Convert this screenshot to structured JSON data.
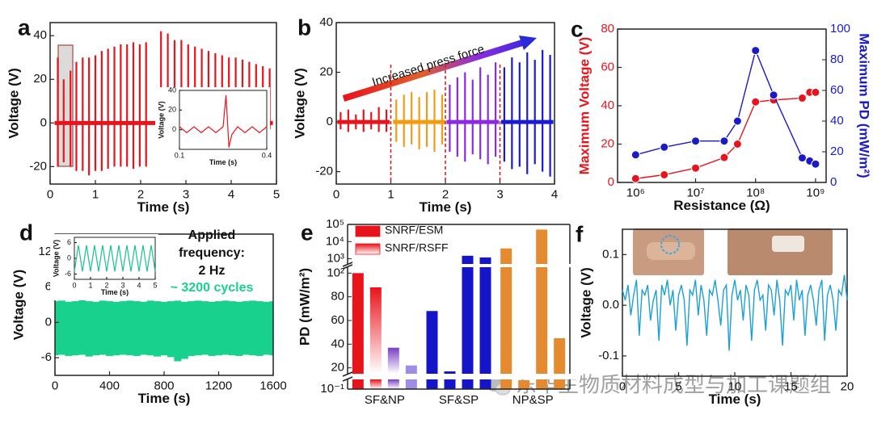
{
  "watermark": "东华生物质材料成型与加工课题组",
  "chart_data": [
    {
      "type": "spike",
      "label": "a",
      "xlabel": "Time (s)",
      "ylabel": "Voltage (V)",
      "xlim": [
        0,
        5
      ],
      "ylim": [
        -28,
        46
      ],
      "xticks": [
        0,
        1,
        2,
        3,
        4,
        5
      ],
      "yticks": [
        -20,
        0,
        20,
        40
      ],
      "color": "#e8141c",
      "x": [
        0.17,
        0.3,
        0.45,
        0.58,
        0.72,
        0.86,
        1.0,
        1.14,
        1.28,
        1.42,
        1.56,
        1.7,
        1.84,
        1.98,
        2.12,
        2.45,
        2.6,
        2.75,
        2.9,
        3.05,
        3.2,
        3.35,
        3.5,
        3.65,
        3.8,
        3.95,
        4.1,
        4.25,
        4.4,
        4.55,
        4.7,
        4.85
      ],
      "high": [
        30,
        20,
        24,
        28,
        30,
        30,
        31,
        33,
        34,
        35,
        36,
        36,
        37,
        36,
        37,
        42,
        41,
        38,
        38,
        36,
        35,
        34,
        33,
        32,
        31,
        30,
        30,
        29,
        28,
        27,
        26,
        25
      ],
      "low": [
        -20,
        -18,
        -20,
        -22,
        -22,
        -24,
        -22,
        -22,
        -21,
        -20,
        -20,
        -20,
        -21,
        -20,
        -20,
        -3,
        -3,
        -3,
        -3,
        -3,
        -3,
        -3,
        -3,
        -3,
        -3,
        -3,
        -3,
        -3,
        -3,
        -3,
        -3,
        -3
      ],
      "inset": {
        "type": "line",
        "xlabel": "Time (s)",
        "ylabel": "Voltage (V)",
        "xlim": [
          0.1,
          0.4
        ],
        "ylim": [
          -20,
          40
        ],
        "xticks": [
          0.1,
          0.4
        ],
        "yticks": [
          0,
          20,
          40
        ],
        "color": "#e8141c",
        "x": [
          0.1,
          0.125,
          0.15,
          0.175,
          0.2,
          0.225,
          0.25,
          0.26,
          0.27,
          0.28,
          0.3,
          0.325,
          0.35,
          0.375,
          0.4
        ],
        "values": [
          3,
          -3,
          3,
          -3,
          3,
          -3,
          3,
          35,
          -18,
          -5,
          3,
          -3,
          3,
          -3,
          3
        ]
      }
    },
    {
      "type": "spike",
      "label": "b",
      "xlabel": "Time (s)",
      "ylabel": "Voltage (V)",
      "annotation": "Increased press force",
      "xlim": [
        0,
        4
      ],
      "ylim": [
        -25,
        40
      ],
      "xticks": [
        0,
        1,
        2,
        3,
        4
      ],
      "yticks": [
        -20,
        0,
        20,
        40
      ],
      "markers": [
        1,
        2,
        3
      ],
      "marker_color": "#d0141c",
      "series": [
        {
          "color": "#e8141c",
          "x": [
            0.08,
            0.22,
            0.36,
            0.5,
            0.64,
            0.78,
            0.92
          ],
          "high": [
            4,
            5,
            3,
            5,
            4,
            6,
            5
          ],
          "low": [
            -3,
            -4,
            -3,
            -4,
            -3,
            -4,
            -4
          ]
        },
        {
          "color": "#f39c12",
          "x": [
            1.1,
            1.24,
            1.38,
            1.52,
            1.66,
            1.8,
            1.94
          ],
          "high": [
            9,
            11,
            12,
            10,
            12,
            13,
            11
          ],
          "low": [
            -8,
            -10,
            -9,
            -11,
            -10,
            -12,
            -9
          ]
        },
        {
          "color": "#8a2be2",
          "x": [
            2.08,
            2.22,
            2.36,
            2.5,
            2.64,
            2.78,
            2.92
          ],
          "high": [
            15,
            18,
            20,
            17,
            22,
            19,
            24
          ],
          "low": [
            -12,
            -14,
            -16,
            -13,
            -15,
            -17,
            -14
          ]
        },
        {
          "color": "#1a1ad0",
          "x": [
            3.08,
            3.22,
            3.36,
            3.5,
            3.64,
            3.78,
            3.92
          ],
          "high": [
            22,
            26,
            24,
            28,
            25,
            29,
            27
          ],
          "low": [
            -16,
            -19,
            -18,
            -21,
            -17,
            -20,
            -22
          ]
        }
      ]
    },
    {
      "type": "line",
      "label": "c",
      "xlabel": "Resistance (Ω)",
      "ylabel": "Maximum Voltage (V)",
      "y2label": "Maximum PD (mW/m²)",
      "xlog": true,
      "markers": true,
      "xlim": [
        500000,
        1500000000
      ],
      "xticks": [
        {
          "value": 1000000,
          "label": "10⁶"
        },
        {
          "value": 10000000,
          "label": "10⁷"
        },
        {
          "value": 100000000,
          "label": "10⁸"
        },
        {
          "value": 1000000000,
          "label": "10⁹"
        }
      ],
      "ylim": [
        0,
        80
      ],
      "yticks": [
        0,
        20,
        40,
        60,
        80
      ],
      "y2lim": [
        0,
        100
      ],
      "y2ticks": [
        0,
        20,
        40,
        60,
        80,
        100
      ],
      "x": [
        1000000,
        3000000,
        10000000,
        30000000,
        50000000,
        100000000,
        200000000,
        600000000,
        800000000,
        1000000000
      ],
      "series": [
        {
          "color": "#e8141c",
          "values": [
            2,
            4,
            7.5,
            13,
            20,
            42,
            43,
            44,
            47,
            47
          ]
        },
        {
          "color": "#1a1ac8",
          "axis": "y2",
          "values": [
            18,
            23,
            27,
            27,
            40,
            86,
            57,
            16,
            14,
            12
          ]
        }
      ]
    },
    {
      "type": "band",
      "label": "d",
      "xlabel": "Time (s)",
      "ylabel": "Voltage (V)",
      "annotation": [
        "Applied",
        "frequency:",
        "2 Hz"
      ],
      "highlight": "~ 3200 cycles",
      "xlim": [
        0,
        1600
      ],
      "ylim": [
        -9,
        15
      ],
      "xticks": [
        0,
        400,
        800,
        1200,
        1600
      ],
      "yticks": [
        -6,
        0,
        6,
        12
      ],
      "color": "#17d18c",
      "x": [
        0,
        50,
        100,
        150,
        200,
        250,
        300,
        350,
        400,
        450,
        500,
        550,
        600,
        650,
        700,
        750,
        800,
        850,
        900,
        950,
        1000,
        1050,
        1100,
        1150,
        1200,
        1250,
        1300,
        1350,
        1400,
        1450,
        1500,
        1550,
        1600
      ],
      "upper": [
        3.6,
        3.7,
        3.5,
        3.6,
        3.8,
        3.6,
        3.5,
        3.7,
        3.6,
        3.5,
        3.6,
        3.7,
        3.6,
        3.5,
        3.7,
        3.6,
        3.5,
        3.6,
        3.7,
        3.5,
        3.6,
        3.7,
        3.6,
        3.5,
        3.6,
        3.7,
        3.6,
        3.5,
        3.6,
        3.7,
        3.6,
        3.5,
        3.6
      ],
      "lower": [
        -5.6,
        -5.5,
        -5.7,
        -5.6,
        -5.5,
        -5.8,
        -5.6,
        -5.5,
        -5.7,
        -5.6,
        -5.5,
        -5.6,
        -5.7,
        -5.5,
        -5.6,
        -5.8,
        -5.6,
        -5.9,
        -6.6,
        -6.2,
        -5.7,
        -5.6,
        -5.5,
        -5.7,
        -5.6,
        -5.5,
        -5.6,
        -5.7,
        -5.5,
        -5.6,
        -5.7,
        -5.5,
        -5.6
      ],
      "inset": {
        "type": "line",
        "xlabel": "Time (s)",
        "ylabel": "Voltage (V)",
        "xlim": [
          0,
          5
        ],
        "ylim": [
          -8,
          8
        ],
        "xticks": [
          0,
          1,
          2,
          3,
          4,
          5
        ],
        "yticks": [
          -6,
          0,
          6
        ],
        "color": "#17c48a",
        "x": [
          0,
          0.25,
          0.5,
          0.75,
          1,
          1.25,
          1.5,
          1.75,
          2,
          2.25,
          2.5,
          2.75,
          3,
          3.25,
          3.5,
          3.75,
          4,
          4.25,
          4.5,
          4.75,
          5
        ],
        "values": [
          -5,
          5,
          -5,
          5,
          -5,
          5,
          -5,
          5,
          -5,
          5,
          -5,
          5,
          -5,
          5,
          -5,
          5,
          -5,
          5,
          -5,
          5,
          -5
        ]
      }
    },
    {
      "type": "bar",
      "label": "e",
      "ylabel": "PD (mW/m²)",
      "categories": [
        "SF&NP",
        "SF&SP",
        "NP&SP"
      ],
      "segments": [
        [
          0.1,
          15
        ],
        [
          15,
          105
        ],
        [
          500,
          100000
        ]
      ],
      "segment_scales": [
        "log",
        "linear",
        "log"
      ],
      "yticks": [
        {
          "value": 0.1,
          "label": "10⁻¹"
        },
        20,
        40,
        60,
        80,
        {
          "value": 100,
          "label": "10²"
        },
        {
          "value": 1000,
          "label": "10³"
        },
        {
          "value": 10000,
          "label": "10⁴"
        },
        {
          "value": 100000,
          "label": "10⁵"
        }
      ],
      "series": [
        {
          "name": "SNRF/ESM",
          "gradient": [
            false,
            false,
            false
          ],
          "colors": [
            "#e8141c",
            "#1414c8",
            "#e58a2e"
          ],
          "values": [
            100,
            68,
            4000
          ]
        },
        {
          "name": "SNRF/RSFF",
          "gradient": [
            true,
            false,
            false
          ],
          "colors": [
            "#e8141c",
            "#1414c8",
            "#e58a2e"
          ],
          "values": [
            88,
            17,
            10
          ]
        },
        {
          "gradient": [
            true,
            false,
            false
          ],
          "colors": [
            "#7b3fc4",
            "#1414c8",
            "#e58a2e"
          ],
          "values": [
            37,
            1500,
            50000
          ]
        },
        {
          "gradient": [
            false,
            false,
            false
          ],
          "colors": [
            "#a08ce6",
            "#1414c8",
            "#e58a2e"
          ],
          "values": [
            22,
            1200,
            45
          ]
        }
      ]
    },
    {
      "type": "line",
      "label": "f",
      "xlabel": "Time (s)",
      "ylabel": "Voltage (V)",
      "xlim": [
        0,
        20
      ],
      "ylim": [
        -0.14,
        0.15
      ],
      "xticks": [
        0,
        5,
        10,
        15,
        20
      ],
      "yticks": [
        -0.1,
        {
          "value": 0,
          "label": "0.0"
        },
        0.1
      ],
      "color": "#1aa0d8",
      "x": [
        0,
        0.25,
        0.5,
        0.75,
        1,
        1.25,
        1.5,
        1.75,
        2,
        2.25,
        2.5,
        2.75,
        3,
        3.25,
        3.5,
        3.75,
        4,
        4.25,
        4.5,
        4.75,
        5,
        5.25,
        5.5,
        5.75,
        6,
        6.25,
        6.5,
        6.75,
        7,
        7.25,
        7.5,
        7.75,
        8,
        8.25,
        8.5,
        8.75,
        9,
        9.25,
        9.5,
        9.75,
        10,
        10.25,
        10.5,
        10.75,
        11,
        11.25,
        11.5,
        11.75,
        12,
        12.25,
        12.5,
        12.75,
        13,
        13.25,
        13.5,
        13.75,
        14,
        14.25,
        14.5,
        14.75,
        15,
        15.25,
        15.5,
        15.75,
        16,
        16.25,
        16.5,
        16.75,
        17,
        17.25,
        17.5,
        17.75,
        18,
        18.25,
        18.5,
        18.75,
        19,
        19.25,
        19.5,
        19.75,
        20
      ],
      "values": [
        0.03,
        0.01,
        0.04,
        -0.02,
        0.02,
        0.05,
        -0.06,
        0.03,
        0.02,
        0.04,
        -0.03,
        0.01,
        0.03,
        -0.07,
        0.04,
        0.02,
        0.05,
        0.0,
        0.03,
        -0.05,
        0.02,
        0.04,
        0.01,
        -0.08,
        0.03,
        0.02,
        0.05,
        -0.02,
        0.04,
        0.01,
        -0.06,
        0.03,
        0.02,
        0.05,
        0.01,
        -0.04,
        0.03,
        0.04,
        -0.09,
        0.02,
        0.05,
        0.01,
        0.03,
        -0.03,
        0.04,
        0.02,
        -0.07,
        0.03,
        0.05,
        0.01,
        0.02,
        -0.05,
        0.04,
        0.03,
        -0.02,
        0.05,
        0.01,
        -0.08,
        0.03,
        0.02,
        0.04,
        -0.03,
        0.05,
        0.01,
        0.03,
        -0.06,
        0.02,
        0.04,
        0.01,
        -0.04,
        0.03,
        0.05,
        -0.07,
        0.02,
        0.04,
        0.01,
        -0.05,
        0.03,
        0.02,
        0.06,
        0.01
      ]
    }
  ]
}
